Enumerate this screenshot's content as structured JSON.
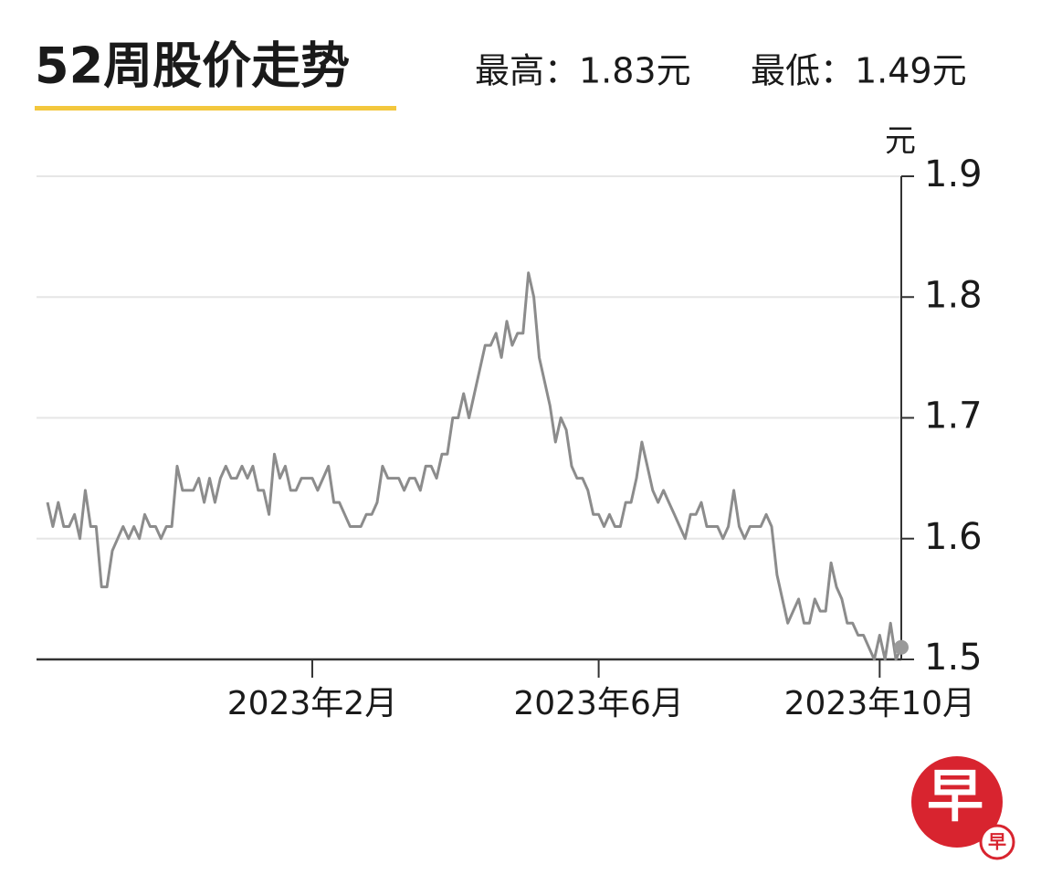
{
  "chart_data": {
    "type": "line",
    "title": "52周股价走势",
    "annotations": [
      "最高：1.83元",
      "最低：1.49元"
    ],
    "y_unit": "元",
    "color": "#8c8c8c",
    "grid": true,
    "ylim": [
      1.5,
      1.9
    ],
    "yticks": [
      1.5,
      1.6,
      1.7,
      1.8,
      1.9
    ],
    "categories": [
      null,
      null,
      null,
      null,
      null,
      null,
      null,
      null,
      null,
      null,
      null,
      null,
      null,
      null,
      null,
      null,
      null,
      null,
      null,
      null,
      null,
      null,
      null,
      null,
      null,
      null,
      null,
      null,
      null,
      null,
      null,
      null,
      null,
      null,
      null,
      null,
      null,
      null,
      null,
      null,
      null,
      null,
      null,
      null,
      null,
      null,
      null,
      null,
      null,
      "2023年2月",
      null,
      null,
      null,
      null,
      null,
      null,
      null,
      null,
      null,
      null,
      null,
      null,
      null,
      null,
      null,
      null,
      null,
      null,
      null,
      null,
      null,
      null,
      null,
      null,
      null,
      null,
      null,
      null,
      null,
      null,
      null,
      null,
      null,
      null,
      null,
      null,
      null,
      null,
      null,
      null,
      null,
      null,
      null,
      null,
      null,
      null,
      null,
      null,
      null,
      null,
      null,
      null,
      "2023年6月",
      null,
      null,
      null,
      null,
      null,
      null,
      null,
      null,
      null,
      null,
      null,
      null,
      null,
      null,
      null,
      null,
      null,
      null,
      null,
      null,
      null,
      null,
      null,
      null,
      null,
      null,
      null,
      null,
      null,
      null,
      null,
      null,
      null,
      null,
      null,
      null,
      null,
      null,
      null,
      null,
      null,
      null,
      null,
      null,
      null,
      null,
      null,
      null,
      null,
      null,
      null,
      "2023年10月",
      null,
      null,
      null,
      null
    ],
    "values": [
      1.63,
      1.61,
      1.63,
      1.61,
      1.61,
      1.62,
      1.6,
      1.64,
      1.61,
      1.61,
      1.56,
      1.56,
      1.59,
      1.6,
      1.61,
      1.6,
      1.61,
      1.6,
      1.62,
      1.61,
      1.61,
      1.6,
      1.61,
      1.61,
      1.66,
      1.64,
      1.64,
      1.64,
      1.65,
      1.63,
      1.65,
      1.63,
      1.65,
      1.66,
      1.65,
      1.65,
      1.66,
      1.65,
      1.66,
      1.64,
      1.64,
      1.62,
      1.67,
      1.65,
      1.66,
      1.64,
      1.64,
      1.65,
      1.65,
      1.65,
      1.64,
      1.65,
      1.66,
      1.63,
      1.63,
      1.62,
      1.61,
      1.61,
      1.61,
      1.62,
      1.62,
      1.63,
      1.66,
      1.65,
      1.65,
      1.65,
      1.64,
      1.65,
      1.65,
      1.64,
      1.66,
      1.66,
      1.65,
      1.67,
      1.67,
      1.7,
      1.7,
      1.72,
      1.7,
      1.72,
      1.74,
      1.76,
      1.76,
      1.77,
      1.75,
      1.78,
      1.76,
      1.77,
      1.77,
      1.82,
      1.8,
      1.75,
      1.73,
      1.71,
      1.68,
      1.7,
      1.69,
      1.66,
      1.65,
      1.65,
      1.64,
      1.62,
      1.62,
      1.61,
      1.62,
      1.61,
      1.61,
      1.63,
      1.63,
      1.65,
      1.68,
      1.66,
      1.64,
      1.63,
      1.64,
      1.63,
      1.62,
      1.61,
      1.6,
      1.62,
      1.62,
      1.63,
      1.61,
      1.61,
      1.61,
      1.6,
      1.61,
      1.64,
      1.61,
      1.6,
      1.61,
      1.61,
      1.61,
      1.62,
      1.61,
      1.57,
      1.55,
      1.53,
      1.54,
      1.55,
      1.53,
      1.53,
      1.55,
      1.54,
      1.54,
      1.58,
      1.56,
      1.55,
      1.53,
      1.53,
      1.52,
      1.52,
      1.51,
      1.5,
      1.52,
      1.5,
      1.53,
      1.5,
      1.51
    ]
  },
  "logo": {
    "main": "早",
    "badge": "早"
  }
}
